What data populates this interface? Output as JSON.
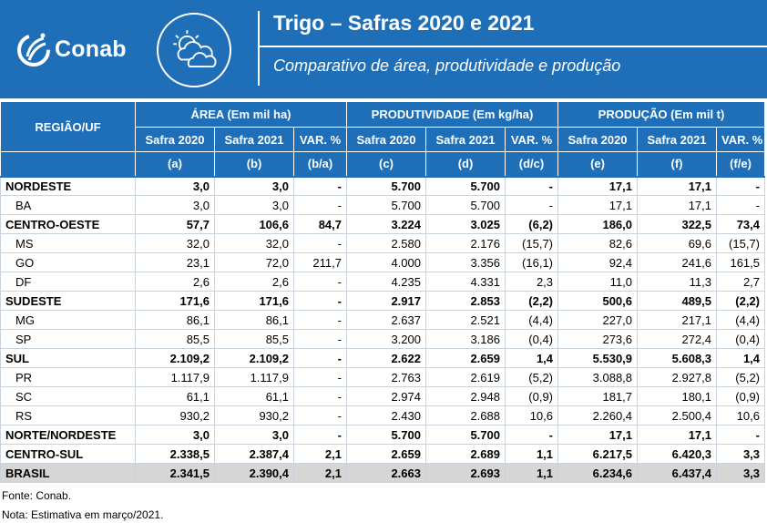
{
  "header": {
    "logo_text": "Conab",
    "title": "Trigo – Safras 2020 e 2021",
    "subtitle": "Comparativo de área, produtividade e produção",
    "icon": "partly-cloudy-weather-icon",
    "color": "#1e6fb7"
  },
  "table": {
    "region_header": "REGIÃO/UF",
    "groups": [
      "ÁREA (Em mil ha)",
      "PRODUTIVIDADE (Em kg/ha)",
      "PRODUÇÃO (Em mil t)"
    ],
    "subheaders": [
      "Safra 2020",
      "Safra 2021",
      "VAR. %",
      "Safra 2020",
      "Safra 2021",
      "VAR. %",
      "Safra 2020",
      "Safra 2021",
      "VAR. %"
    ],
    "letters": [
      "(a)",
      "(b)",
      "(b/a)",
      "(c)",
      "(d)",
      "(d/c)",
      "(e)",
      "(f)",
      "(f/e)"
    ],
    "rows": [
      {
        "name": "NORDESTE",
        "v": [
          "3,0",
          "3,0",
          "-",
          "5.700",
          "5.700",
          "-",
          "17,1",
          "17,1",
          "-"
        ]
      },
      {
        "name": "BA",
        "v": [
          "3,0",
          "3,0",
          "-",
          "5.700",
          "5.700",
          "-",
          "17,1",
          "17,1",
          "-"
        ]
      },
      {
        "name": "CENTRO-OESTE",
        "v": [
          "57,7",
          "106,6",
          "84,7",
          "3.224",
          "3.025",
          "(6,2)",
          "186,0",
          "322,5",
          "73,4"
        ]
      },
      {
        "name": "MS",
        "v": [
          "32,0",
          "32,0",
          "-",
          "2.580",
          "2.176",
          "(15,7)",
          "82,6",
          "69,6",
          "(15,7)"
        ]
      },
      {
        "name": "GO",
        "v": [
          "23,1",
          "72,0",
          "211,7",
          "4.000",
          "3.356",
          "(16,1)",
          "92,4",
          "241,6",
          "161,5"
        ]
      },
      {
        "name": "DF",
        "v": [
          "2,6",
          "2,6",
          "-",
          "4.235",
          "4.331",
          "2,3",
          "11,0",
          "11,3",
          "2,7"
        ]
      },
      {
        "name": "SUDESTE",
        "v": [
          "171,6",
          "171,6",
          "-",
          "2.917",
          "2.853",
          "(2,2)",
          "500,6",
          "489,5",
          "(2,2)"
        ]
      },
      {
        "name": "MG",
        "v": [
          "86,1",
          "86,1",
          "-",
          "2.637",
          "2.521",
          "(4,4)",
          "227,0",
          "217,1",
          "(4,4)"
        ]
      },
      {
        "name": "SP",
        "v": [
          "85,5",
          "85,5",
          "-",
          "3.200",
          "3.186",
          "(0,4)",
          "273,6",
          "272,4",
          "(0,4)"
        ]
      },
      {
        "name": "SUL",
        "v": [
          "2.109,2",
          "2.109,2",
          "-",
          "2.622",
          "2.659",
          "1,4",
          "5.530,9",
          "5.608,3",
          "1,4"
        ]
      },
      {
        "name": "PR",
        "v": [
          "1.117,9",
          "1.117,9",
          "-",
          "2.763",
          "2.619",
          "(5,2)",
          "3.088,8",
          "2.927,8",
          "(5,2)"
        ]
      },
      {
        "name": "SC",
        "v": [
          "61,1",
          "61,1",
          "-",
          "2.974",
          "2.948",
          "(0,9)",
          "181,7",
          "180,1",
          "(0,9)"
        ]
      },
      {
        "name": "RS",
        "v": [
          "930,2",
          "930,2",
          "-",
          "2.430",
          "2.688",
          "10,6",
          "2.260,4",
          "2.500,4",
          "10,6"
        ]
      },
      {
        "name": "NORTE/NORDESTE",
        "v": [
          "3,0",
          "3,0",
          "-",
          "5.700",
          "5.700",
          "-",
          "17,1",
          "17,1",
          "-"
        ]
      },
      {
        "name": "CENTRO-SUL",
        "v": [
          "2.338,5",
          "2.387,4",
          "2,1",
          "2.659",
          "2.689",
          "1,1",
          "6.217,5",
          "6.420,3",
          "3,3"
        ]
      },
      {
        "name": "BRASIL",
        "v": [
          "2.341,5",
          "2.390,4",
          "2,1",
          "2.663",
          "2.693",
          "1,1",
          "6.234,6",
          "6.437,4",
          "3,3"
        ]
      }
    ]
  },
  "notes": {
    "source": "Fonte: Conab.",
    "note": "Nota: Estimativa em março/2021."
  }
}
